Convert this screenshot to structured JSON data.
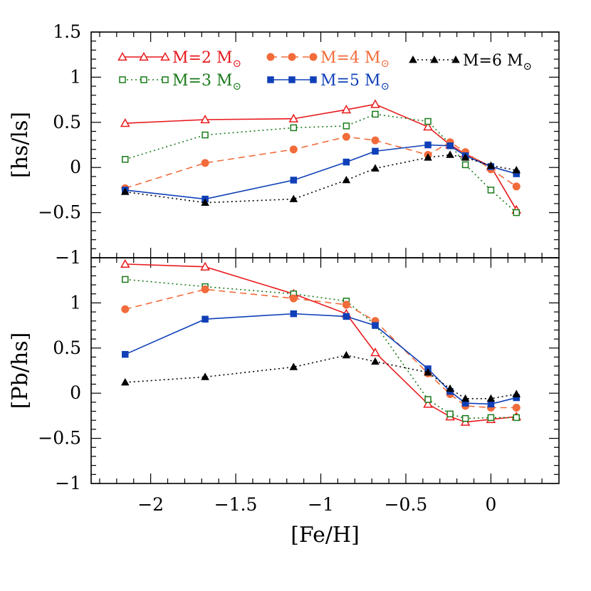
{
  "colors": {
    "M2": "#e8191c",
    "M3": "#1a7a1a",
    "M4": "#f26b3a",
    "M5": "#1040b8",
    "M6": "#000000"
  },
  "chart_data": [
    {
      "type": "line",
      "xlabel": "",
      "ylabel": "[hs/ls]",
      "xlim": [
        -2.35,
        0.4
      ],
      "ylim": [
        -1,
        1.5
      ],
      "yticks": [
        -1,
        -0.5,
        0,
        0.5,
        1,
        1.5
      ],
      "ytick_labels": [
        "−1",
        "−0.5",
        "0",
        "0.5",
        "1",
        "1.5"
      ],
      "x": [
        -2.15,
        -1.68,
        -1.16,
        -0.85,
        -0.68,
        -0.37,
        -0.24,
        -0.15,
        0.0,
        0.15
      ],
      "legend_position": "top",
      "series": [
        {
          "key": "M2",
          "name": "M=2 M⊙",
          "marker": "open-triangle",
          "line": "solid",
          "values": [
            0.49,
            0.53,
            0.54,
            0.64,
            0.7,
            0.45,
            0.25,
            0.15,
            0.01,
            -0.47
          ]
        },
        {
          "key": "M3",
          "name": "M=3 M⊙",
          "marker": "open-square",
          "line": "dotted",
          "values": [
            0.09,
            0.36,
            0.44,
            0.46,
            0.59,
            0.51,
            0.26,
            0.03,
            -0.25,
            -0.5
          ]
        },
        {
          "key": "M4",
          "name": "M=4 M⊙",
          "marker": "filled-circle",
          "line": "dashed",
          "values": [
            -0.23,
            0.05,
            0.2,
            0.34,
            0.3,
            0.14,
            0.28,
            0.17,
            -0.02,
            -0.21
          ]
        },
        {
          "key": "M5",
          "name": "M=5 M⊙",
          "marker": "filled-square",
          "line": "solid",
          "values": [
            -0.25,
            -0.35,
            -0.14,
            0.06,
            0.18,
            0.25,
            0.24,
            0.13,
            0.01,
            -0.07
          ]
        },
        {
          "key": "M6",
          "name": "M=6 M⊙",
          "marker": "filled-triangle",
          "line": "dotted",
          "values": [
            -0.27,
            -0.39,
            -0.35,
            -0.14,
            -0.01,
            0.11,
            0.14,
            0.11,
            0.02,
            -0.03
          ]
        }
      ]
    },
    {
      "type": "line",
      "xlabel": "[Fe/H]",
      "ylabel": "[Pb/hs]",
      "xlim": [
        -2.35,
        0.4
      ],
      "ylim": [
        -1,
        1.5
      ],
      "yticks": [
        -1,
        -0.5,
        0,
        0.5,
        1
      ],
      "ytick_labels": [
        "−1",
        "−0.5",
        "0",
        "0.5",
        "1"
      ],
      "xticks": [
        -2,
        -1.5,
        -1,
        -0.5,
        0
      ],
      "xtick_labels": [
        "−2",
        "−1.5",
        "−1",
        "−0.5",
        "0"
      ],
      "x": [
        -2.15,
        -1.68,
        -1.16,
        -0.85,
        -0.68,
        -0.37,
        -0.24,
        -0.15,
        0.0,
        0.15
      ],
      "series": [
        {
          "key": "M2",
          "name": "M=2 M⊙",
          "marker": "open-triangle",
          "line": "solid",
          "values": [
            1.43,
            1.4,
            1.1,
            0.88,
            0.45,
            -0.12,
            -0.26,
            -0.32,
            -0.29,
            -0.26
          ]
        },
        {
          "key": "M3",
          "name": "M=3 M⊙",
          "marker": "open-square",
          "line": "dotted",
          "values": [
            1.26,
            1.18,
            1.1,
            1.02,
            0.76,
            -0.07,
            -0.23,
            -0.28,
            -0.27,
            -0.27
          ]
        },
        {
          "key": "M4",
          "name": "M=4 M⊙",
          "marker": "filled-circle",
          "line": "dashed",
          "values": [
            0.93,
            1.15,
            1.05,
            0.98,
            0.8,
            0.22,
            -0.01,
            -0.14,
            -0.16,
            -0.16
          ]
        },
        {
          "key": "M5",
          "name": "M=5 M⊙",
          "marker": "filled-square",
          "line": "solid",
          "values": [
            0.43,
            0.82,
            0.88,
            0.85,
            0.75,
            0.27,
            0.02,
            -0.11,
            -0.12,
            -0.05
          ]
        },
        {
          "key": "M6",
          "name": "M=6 M⊙",
          "marker": "filled-triangle",
          "line": "dotted",
          "values": [
            0.12,
            0.18,
            0.29,
            0.42,
            0.35,
            0.23,
            0.05,
            -0.06,
            -0.06,
            -0.01
          ]
        }
      ]
    }
  ]
}
